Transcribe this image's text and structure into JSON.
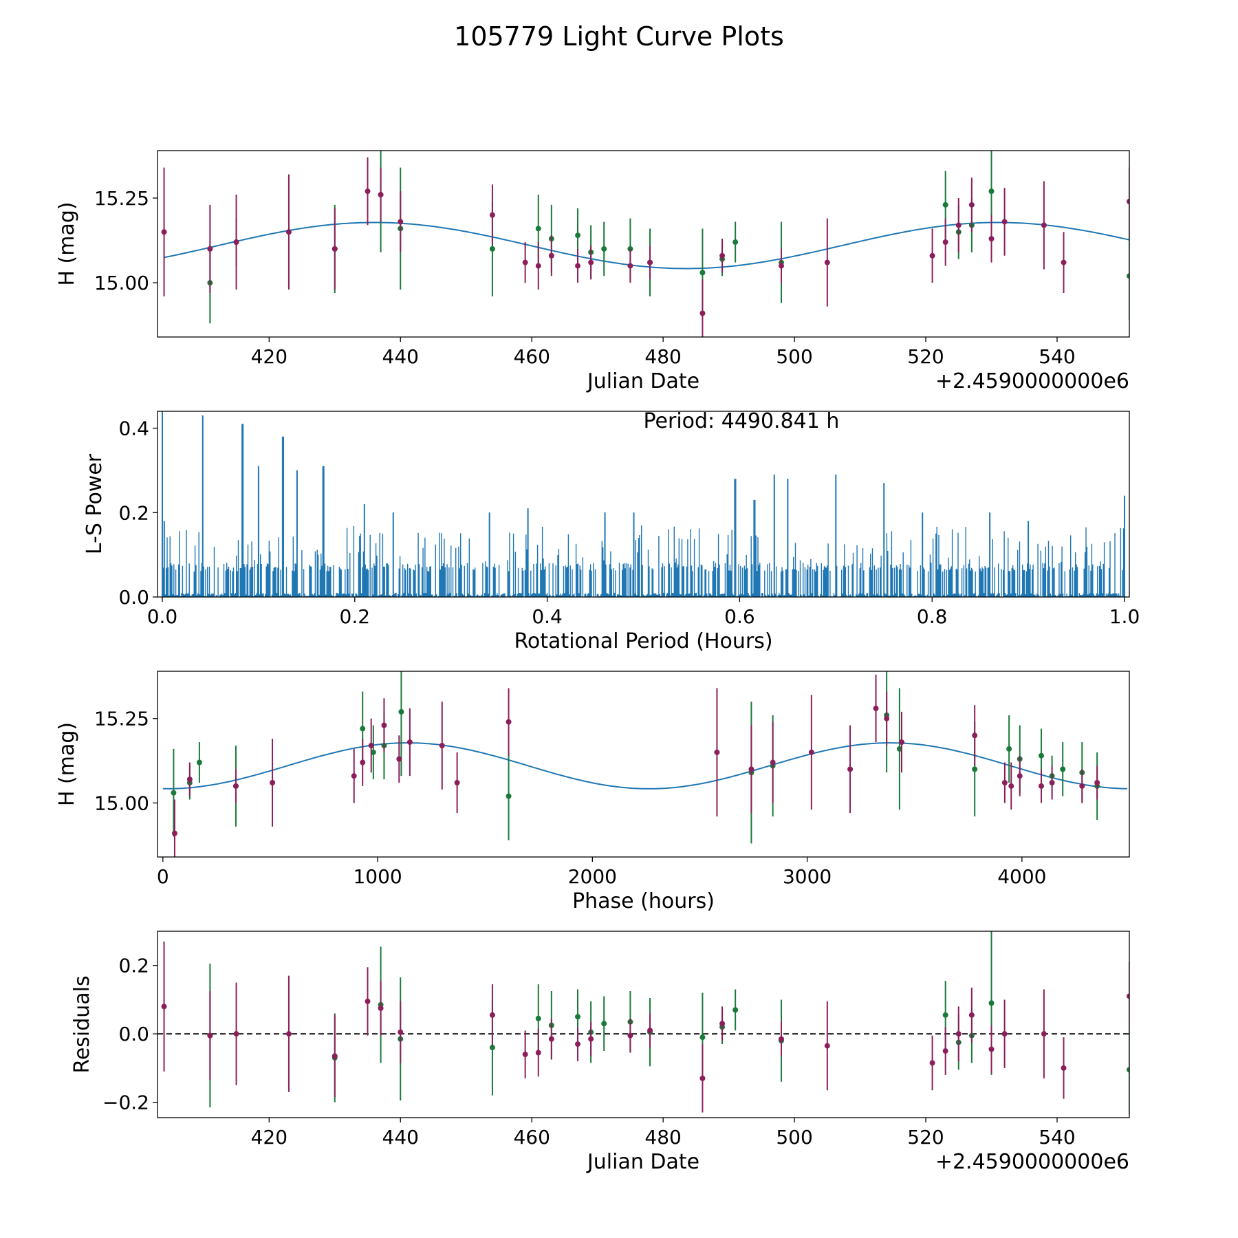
{
  "figure": {
    "title": "105779 Light Curve Plots"
  },
  "colors": {
    "fit": "#1f77b4",
    "series_green": "#1a7a3a",
    "series_magenta": "#8b1f5c",
    "periodogram": "#1f77b4"
  },
  "chart_data": [
    {
      "id": "lightcurve",
      "type": "scatter",
      "xlabel": "Julian Date",
      "ylabel": "H (mag)",
      "offset_text": "+2.4590000000e6",
      "xlim": [
        403,
        551
      ],
      "ylim": [
        14.84,
        15.39
      ],
      "xticks": [
        420,
        440,
        460,
        480,
        500,
        520,
        540
      ],
      "xtick_labels": [
        "420",
        "440",
        "460",
        "480",
        "500",
        "520",
        "540"
      ],
      "yticks": [
        15.0,
        15.25
      ],
      "ytick_labels": [
        "15.00",
        "15.25"
      ],
      "fit": {
        "mean": 15.11,
        "amplitude": 0.068,
        "period_days": 95.0,
        "peak_x": 436.0,
        "x_range": [
          404,
          551
        ]
      },
      "series": [
        {
          "name": "green",
          "points": [
            [
              411,
              15.0,
              0.12
            ],
            [
              415,
              15.12,
              0.07
            ],
            [
              430,
              15.1,
              0.13
            ],
            [
              437,
              15.26,
              0.17
            ],
            [
              440,
              15.16,
              0.18
            ],
            [
              454,
              15.1,
              0.14
            ],
            [
              461,
              15.16,
              0.1
            ],
            [
              463,
              15.13,
              0.1
            ],
            [
              467,
              15.14,
              0.08
            ],
            [
              469,
              15.09,
              0.08
            ],
            [
              471,
              15.1,
              0.08
            ],
            [
              475,
              15.1,
              0.09
            ],
            [
              478,
              15.06,
              0.1
            ],
            [
              486,
              15.03,
              0.13
            ],
            [
              489,
              15.07,
              0.05
            ],
            [
              491,
              15.12,
              0.06
            ],
            [
              498,
              15.06,
              0.12
            ],
            [
              523,
              15.23,
              0.1
            ],
            [
              525,
              15.15,
              0.08
            ],
            [
              527,
              15.17,
              0.08
            ],
            [
              530,
              15.27,
              0.2
            ],
            [
              551,
              15.02,
              0.13
            ]
          ]
        },
        {
          "name": "magenta",
          "points": [
            [
              404,
              15.15,
              0.19
            ],
            [
              411,
              15.1,
              0.13
            ],
            [
              415,
              15.12,
              0.14
            ],
            [
              423,
              15.15,
              0.17
            ],
            [
              430,
              15.1,
              0.12
            ],
            [
              435,
              15.27,
              0.1
            ],
            [
              437,
              15.26,
              0.08
            ],
            [
              440,
              15.18,
              0.09
            ],
            [
              454,
              15.2,
              0.09
            ],
            [
              459,
              15.06,
              0.06
            ],
            [
              461,
              15.05,
              0.07
            ],
            [
              463,
              15.08,
              0.06
            ],
            [
              467,
              15.05,
              0.05
            ],
            [
              469,
              15.06,
              0.05
            ],
            [
              475,
              15.05,
              0.05
            ],
            [
              478,
              15.06,
              0.05
            ],
            [
              486,
              14.91,
              0.1
            ],
            [
              489,
              15.08,
              0.05
            ],
            [
              498,
              15.05,
              0.05
            ],
            [
              505,
              15.06,
              0.13
            ],
            [
              521,
              15.08,
              0.08
            ],
            [
              523,
              15.12,
              0.07
            ],
            [
              525,
              15.17,
              0.08
            ],
            [
              527,
              15.23,
              0.08
            ],
            [
              530,
              15.13,
              0.07
            ],
            [
              532,
              15.18,
              0.1
            ],
            [
              538,
              15.17,
              0.13
            ],
            [
              541,
              15.06,
              0.09
            ],
            [
              551,
              15.24,
              0.1
            ]
          ]
        }
      ]
    },
    {
      "id": "periodogram",
      "type": "line",
      "xlabel": "Rotational Period (Hours)",
      "ylabel": "L-S Power",
      "annotation": "Period: 4490.841 h",
      "xlim": [
        -0.005,
        1.005
      ],
      "ylim": [
        0,
        0.44
      ],
      "xticks": [
        0.0,
        0.2,
        0.4,
        0.6,
        0.8,
        1.0
      ],
      "xtick_labels": [
        "0.0",
        "0.2",
        "0.4",
        "0.6",
        "0.8",
        "1.0"
      ],
      "yticks": [
        0.0,
        0.2,
        0.4
      ],
      "ytick_labels": [
        "0.0",
        "0.2",
        "0.4"
      ],
      "peaks": [
        [
          0.0,
          0.44
        ],
        [
          0.002,
          0.18
        ],
        [
          0.042,
          0.43
        ],
        [
          0.083,
          0.41
        ],
        [
          0.1,
          0.31
        ],
        [
          0.125,
          0.38
        ],
        [
          0.14,
          0.3
        ],
        [
          0.167,
          0.31
        ],
        [
          0.21,
          0.22
        ],
        [
          0.24,
          0.2
        ],
        [
          0.34,
          0.2
        ],
        [
          0.38,
          0.21
        ],
        [
          0.46,
          0.2
        ],
        [
          0.49,
          0.2
        ],
        [
          0.595,
          0.28
        ],
        [
          0.615,
          0.23
        ],
        [
          0.636,
          0.29
        ],
        [
          0.65,
          0.28
        ],
        [
          0.7,
          0.29
        ],
        [
          0.75,
          0.27
        ],
        [
          0.79,
          0.2
        ],
        [
          0.86,
          0.2
        ],
        [
          0.9,
          0.18
        ],
        [
          1.0,
          0.24
        ]
      ]
    },
    {
      "id": "phased",
      "type": "scatter",
      "xlabel": "Phase (hours)",
      "ylabel": "H (mag)",
      "xlim": [
        -25,
        4500
      ],
      "ylim": [
        14.84,
        15.39
      ],
      "xticks": [
        0,
        1000,
        2000,
        3000,
        4000
      ],
      "xtick_labels": [
        "0",
        "1000",
        "2000",
        "3000",
        "4000"
      ],
      "yticks": [
        15.0,
        15.25
      ],
      "ytick_labels": [
        "15.00",
        "15.25"
      ],
      "fit": {
        "mean": 15.11,
        "amplitude": 0.068,
        "period": 2245.4,
        "peak_x": 1140,
        "x_range": [
          0,
          4490
        ]
      },
      "series": [
        {
          "name": "green",
          "points": [
            [
              50,
              15.03,
              0.13
            ],
            [
              125,
              15.06,
              0.05
            ],
            [
              170,
              15.12,
              0.06
            ],
            [
              340,
              15.05,
              0.12
            ],
            [
              930,
              15.22,
              0.11
            ],
            [
              980,
              15.15,
              0.08
            ],
            [
              1030,
              15.17,
              0.1
            ],
            [
              1110,
              15.27,
              0.19
            ],
            [
              1610,
              15.02,
              0.13
            ],
            [
              2740,
              15.09,
              0.21
            ],
            [
              2840,
              15.11,
              0.15
            ],
            [
              3370,
              15.26,
              0.17
            ],
            [
              3430,
              15.16,
              0.18
            ],
            [
              3780,
              15.1,
              0.14
            ],
            [
              3940,
              15.16,
              0.1
            ],
            [
              3990,
              15.13,
              0.1
            ],
            [
              4090,
              15.14,
              0.08
            ],
            [
              4140,
              15.08,
              0.06
            ],
            [
              4190,
              15.1,
              0.08
            ],
            [
              4280,
              15.09,
              0.09
            ],
            [
              4350,
              15.05,
              0.1
            ]
          ]
        },
        {
          "name": "magenta",
          "points": [
            [
              55,
              14.91,
              0.1
            ],
            [
              125,
              15.07,
              0.05
            ],
            [
              340,
              15.05,
              0.05
            ],
            [
              510,
              15.06,
              0.13
            ],
            [
              890,
              15.08,
              0.08
            ],
            [
              930,
              15.12,
              0.07
            ],
            [
              970,
              15.17,
              0.08
            ],
            [
              1030,
              15.23,
              0.08
            ],
            [
              1100,
              15.13,
              0.07
            ],
            [
              1150,
              15.18,
              0.1
            ],
            [
              1300,
              15.17,
              0.13
            ],
            [
              1370,
              15.06,
              0.09
            ],
            [
              1610,
              15.24,
              0.1
            ],
            [
              2580,
              15.15,
              0.19
            ],
            [
              2740,
              15.1,
              0.13
            ],
            [
              2840,
              15.12,
              0.12
            ],
            [
              3020,
              15.15,
              0.17
            ],
            [
              3200,
              15.1,
              0.13
            ],
            [
              3320,
              15.28,
              0.1
            ],
            [
              3370,
              15.25,
              0.08
            ],
            [
              3440,
              15.18,
              0.09
            ],
            [
              3780,
              15.2,
              0.09
            ],
            [
              3920,
              15.06,
              0.06
            ],
            [
              3950,
              15.05,
              0.07
            ],
            [
              3990,
              15.08,
              0.06
            ],
            [
              4090,
              15.05,
              0.05
            ],
            [
              4140,
              15.06,
              0.05
            ],
            [
              4280,
              15.05,
              0.05
            ],
            [
              4350,
              15.06,
              0.05
            ]
          ]
        }
      ]
    },
    {
      "id": "residuals",
      "type": "scatter",
      "xlabel": "Julian Date",
      "ylabel": "Residuals",
      "offset_text": "+2.4590000000e6",
      "xlim": [
        403,
        551
      ],
      "ylim": [
        -0.245,
        0.3
      ],
      "xticks": [
        420,
        440,
        460,
        480,
        500,
        520,
        540
      ],
      "xtick_labels": [
        "420",
        "440",
        "460",
        "480",
        "500",
        "520",
        "540"
      ],
      "yticks": [
        -0.2,
        0.0,
        0.2
      ],
      "ytick_labels": [
        "−0.2",
        "0.0",
        "0.2"
      ],
      "zero_line": 0.0,
      "series": [
        {
          "name": "green",
          "points": [
            [
              411,
              -0.005,
              0.21
            ],
            [
              430,
              -0.07,
              0.13
            ],
            [
              437,
              0.085,
              0.17
            ],
            [
              440,
              -0.015,
              0.18
            ],
            [
              454,
              -0.04,
              0.14
            ],
            [
              461,
              0.045,
              0.1
            ],
            [
              463,
              0.025,
              0.1
            ],
            [
              467,
              0.05,
              0.08
            ],
            [
              469,
              0.005,
              0.09
            ],
            [
              471,
              0.03,
              0.08
            ],
            [
              475,
              0.035,
              0.09
            ],
            [
              478,
              0.005,
              0.1
            ],
            [
              486,
              -0.01,
              0.13
            ],
            [
              489,
              0.02,
              0.05
            ],
            [
              491,
              0.07,
              0.06
            ],
            [
              498,
              -0.02,
              0.12
            ],
            [
              523,
              0.055,
              0.1
            ],
            [
              525,
              -0.025,
              0.08
            ],
            [
              527,
              -0.005,
              0.08
            ],
            [
              530,
              0.09,
              0.21
            ],
            [
              551,
              -0.105,
              0.13
            ]
          ]
        },
        {
          "name": "magenta",
          "points": [
            [
              404,
              0.08,
              0.19
            ],
            [
              411,
              -0.005,
              0.13
            ],
            [
              415,
              0.0,
              0.15
            ],
            [
              423,
              0.0,
              0.17
            ],
            [
              430,
              -0.065,
              0.12
            ],
            [
              435,
              0.095,
              0.1
            ],
            [
              437,
              0.075,
              0.08
            ],
            [
              440,
              0.005,
              0.09
            ],
            [
              454,
              0.055,
              0.09
            ],
            [
              459,
              -0.06,
              0.07
            ],
            [
              461,
              -0.055,
              0.07
            ],
            [
              463,
              -0.015,
              0.06
            ],
            [
              467,
              -0.03,
              0.05
            ],
            [
              469,
              -0.015,
              0.05
            ],
            [
              475,
              -0.005,
              0.05
            ],
            [
              478,
              0.01,
              0.05
            ],
            [
              486,
              -0.13,
              0.1
            ],
            [
              489,
              0.03,
              0.05
            ],
            [
              498,
              -0.015,
              0.05
            ],
            [
              505,
              -0.035,
              0.13
            ],
            [
              521,
              -0.085,
              0.08
            ],
            [
              523,
              -0.05,
              0.07
            ],
            [
              525,
              0.0,
              0.08
            ],
            [
              527,
              0.055,
              0.08
            ],
            [
              530,
              -0.045,
              0.07
            ],
            [
              532,
              0.0,
              0.1
            ],
            [
              538,
              0.0,
              0.13
            ],
            [
              541,
              -0.1,
              0.09
            ],
            [
              551,
              0.11,
              0.1
            ]
          ]
        }
      ]
    }
  ]
}
